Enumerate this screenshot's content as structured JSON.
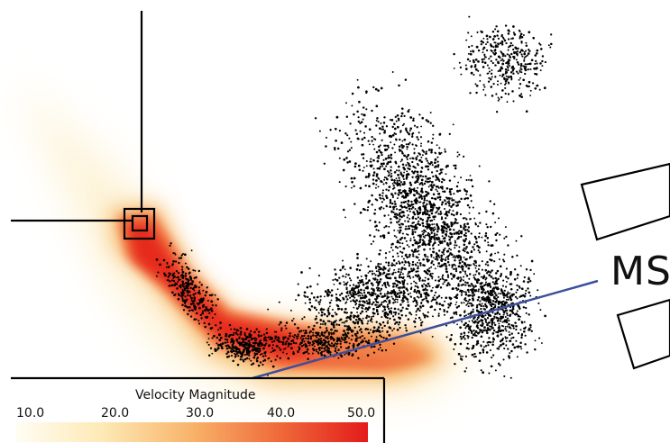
{
  "legend": {
    "title": "Velocity Magnitude",
    "ticks": [
      "10.0",
      "20.0",
      "30.0",
      "40.0",
      "50.0"
    ],
    "range": [
      10.0,
      50.0
    ],
    "colors": [
      "#fffdf4",
      "#fde9b4",
      "#f8b36a",
      "#ef6a3a",
      "#e31b1b"
    ]
  },
  "structure_label": "MS",
  "colors": {
    "particles": "#000000",
    "indicator_line": "#3d4f9c",
    "outline": "#000000"
  }
}
